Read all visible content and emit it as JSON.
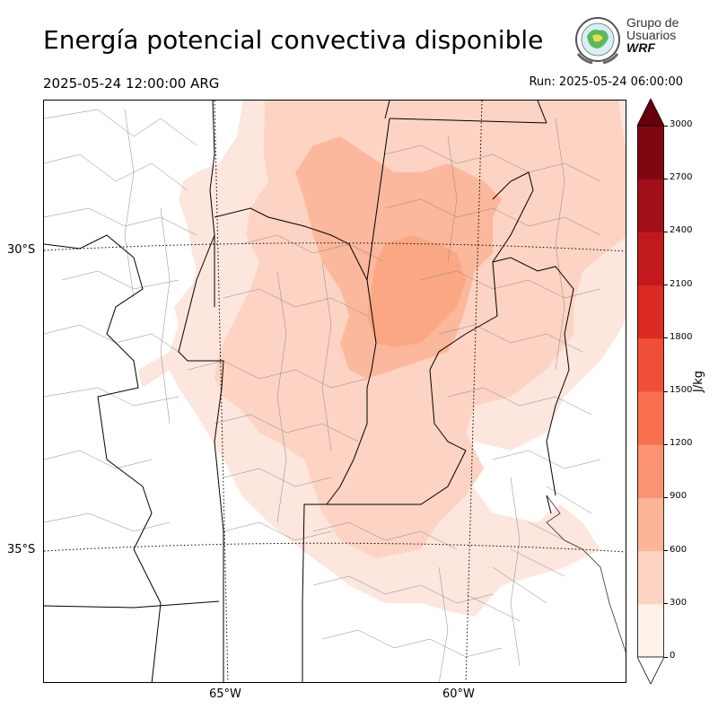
{
  "header": {
    "title": "Energía potencial convectiva disponible",
    "valid_time": "2025-05-24 12:00:00 ARG",
    "run_time": "Run: 2025-05-24 06:00:00"
  },
  "logo": {
    "line1": "Grupo de",
    "line2": "Usuarios",
    "line3": "WRF"
  },
  "map": {
    "lat_labels": [
      "30°S",
      "35°S"
    ],
    "lon_labels": [
      "65°W",
      "60°W"
    ]
  },
  "colorbar": {
    "unit": "J/kg",
    "ticks": [
      "0",
      "300",
      "600",
      "900",
      "1200",
      "1500",
      "1800",
      "2100",
      "2400",
      "2700",
      "3000"
    ],
    "colors": [
      "#fff0ea",
      "#fdd3c3",
      "#fcb598",
      "#fb9273",
      "#f9704f",
      "#f14e39",
      "#dc2a24",
      "#c21a1c",
      "#a10f18",
      "#7f0712"
    ],
    "extend_low": "#ffffff",
    "extend_high": "#67000d"
  },
  "cape_colors": {
    "level1": "#fde6dd",
    "level2": "#fdd3c3",
    "level3": "#fbb89c",
    "level4": "#fba784"
  }
}
